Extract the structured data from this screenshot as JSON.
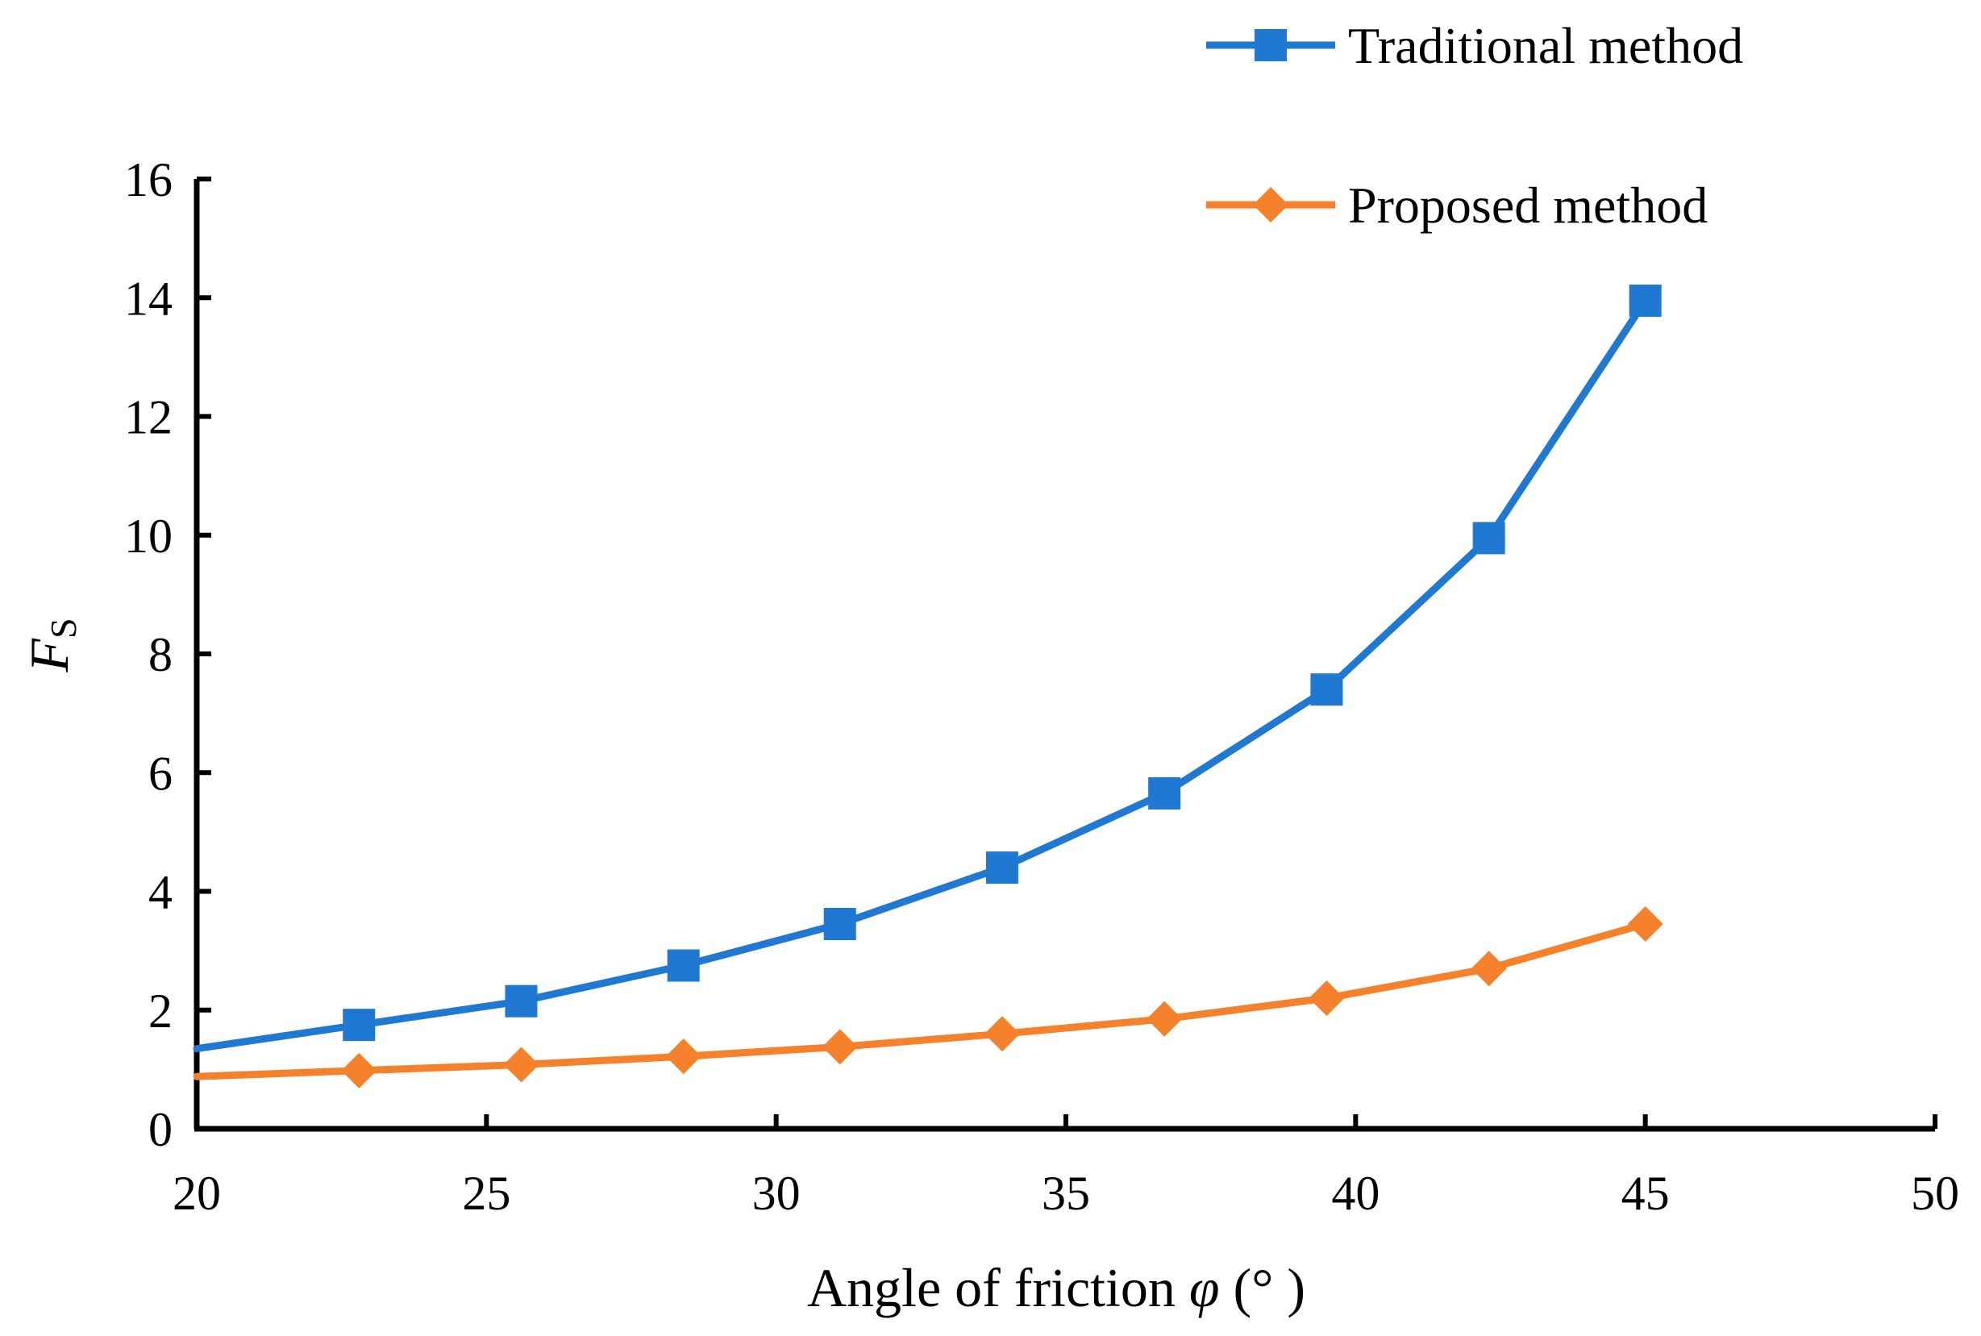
{
  "chart_data": {
    "type": "line",
    "title": "",
    "xlabel": {
      "prefix": "Angle of friction ",
      "symbol": "φ",
      "unit_open": " (",
      "unit": "°",
      "unit_close": " )"
    },
    "ylabel": {
      "symbol": "F",
      "subscript": "S"
    },
    "xlim": [
      20,
      50
    ],
    "ylim": [
      0,
      16
    ],
    "xticks": [
      20,
      25,
      30,
      35,
      40,
      45,
      50
    ],
    "yticks": [
      0,
      2,
      4,
      6,
      8,
      10,
      12,
      14,
      16
    ],
    "xtick_labels": [
      "20",
      "25",
      "30",
      "35",
      "40",
      "45",
      "50"
    ],
    "ytick_labels": [
      "0",
      "2",
      "4",
      "6",
      "8",
      "10",
      "12",
      "14",
      "16"
    ],
    "grid": false,
    "legend_position": "top-right",
    "x": [
      20,
      22.8,
      25.6,
      28.4,
      31.1,
      33.9,
      36.7,
      39.5,
      42.3,
      45
    ],
    "series": [
      {
        "name": "Traditional method",
        "color": "#1f78d1",
        "marker": "square",
        "values": [
          1.35,
          1.75,
          2.15,
          2.75,
          3.45,
          4.4,
          5.65,
          7.4,
          9.95,
          13.95
        ],
        "marker_from_index": 1
      },
      {
        "name": "Proposed method",
        "color": "#f5822a",
        "marker": "diamond",
        "values": [
          0.88,
          0.98,
          1.08,
          1.22,
          1.38,
          1.6,
          1.85,
          2.2,
          2.7,
          3.45
        ],
        "marker_from_index": 1
      }
    ]
  }
}
